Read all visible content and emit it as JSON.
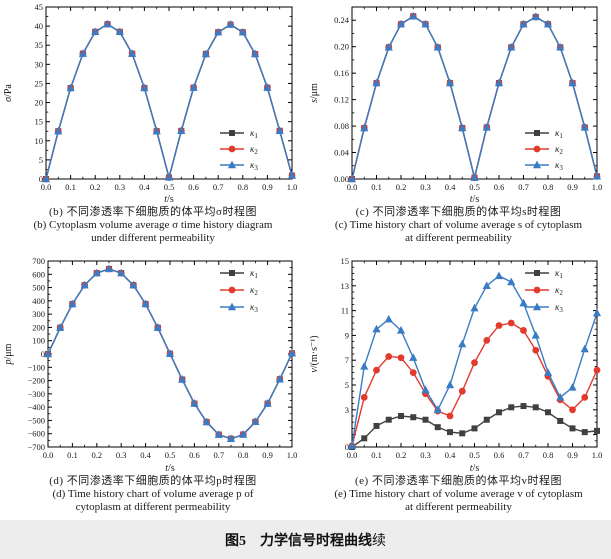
{
  "figure": {
    "label": "图5",
    "title": "力学信号时程曲线",
    "suffix": "续"
  },
  "chart_data": [
    {
      "id": "b",
      "type": "line",
      "xlabel": "t/s",
      "ylabel": "σ/Pa",
      "xlim": [
        0,
        1
      ],
      "ylim": [
        0,
        45
      ],
      "xtick_labels": [
        "0.0",
        "0.1",
        "0.2",
        "0.3",
        "0.4",
        "0.5",
        "0.6",
        "0.7",
        "0.8",
        "0.9",
        "1.0"
      ],
      "ytick_values": [
        0,
        5,
        10,
        15,
        20,
        25,
        30,
        35,
        40,
        45
      ],
      "ytick_labels": [
        "0",
        "5",
        "10",
        "15",
        "20",
        "25",
        "30",
        "35",
        "40",
        "45"
      ],
      "legend_position": "right-lower",
      "x": [
        0,
        0.05,
        0.1,
        0.15,
        0.2,
        0.25,
        0.3,
        0.35,
        0.4,
        0.45,
        0.5,
        0.55,
        0.6,
        0.65,
        0.7,
        0.75,
        0.8,
        0.85,
        0.9,
        0.95,
        1
      ],
      "series": [
        {
          "name": "κ1",
          "color": "#404040",
          "marker": "square",
          "values": [
            0,
            12.5,
            23.8,
            32.8,
            38.5,
            40.5,
            38.5,
            32.8,
            23.8,
            12.5,
            0.4,
            12.6,
            23.9,
            32.7,
            38.4,
            40.4,
            38.4,
            32.7,
            23.9,
            12.6,
            0.9
          ]
        },
        {
          "name": "κ2",
          "color": "#e23b2e",
          "marker": "circle",
          "values": [
            0,
            12.5,
            23.8,
            32.8,
            38.5,
            40.5,
            38.5,
            32.8,
            23.8,
            12.5,
            0.4,
            12.6,
            23.9,
            32.7,
            38.4,
            40.4,
            38.4,
            32.7,
            23.9,
            12.6,
            0.9
          ]
        },
        {
          "name": "κ3",
          "color": "#3a7cc4",
          "marker": "triangle",
          "values": [
            0,
            12.5,
            23.8,
            32.8,
            38.5,
            40.5,
            38.5,
            32.8,
            23.8,
            12.5,
            0.4,
            12.6,
            23.9,
            32.7,
            38.4,
            40.4,
            38.4,
            32.7,
            23.9,
            12.6,
            0.9
          ]
        }
      ],
      "caption_cn": "(b) 不同渗透率下细胞质的体平均σ时程图",
      "caption_en1": "(b) Cytoplasm volume average σ time history diagram",
      "caption_en2": "under different permeability"
    },
    {
      "id": "c",
      "type": "line",
      "xlabel": "t/s",
      "ylabel": "s/μm",
      "xlim": [
        0,
        1
      ],
      "ylim": [
        0,
        0.26
      ],
      "xtick_labels": [
        "0.0",
        "0.1",
        "0.2",
        "0.3",
        "0.4",
        "0.5",
        "0.6",
        "0.7",
        "0.8",
        "0.9",
        "1.0"
      ],
      "ytick_values": [
        0,
        0.04,
        0.08,
        0.12,
        0.16,
        0.2,
        0.24
      ],
      "ytick_labels": [
        "0.00",
        "0.04",
        "0.08",
        "0.12",
        "0.16",
        "0.20",
        "0.24"
      ],
      "legend_position": "right-lower",
      "x": [
        0,
        0.05,
        0.1,
        0.15,
        0.2,
        0.25,
        0.3,
        0.35,
        0.4,
        0.45,
        0.5,
        0.55,
        0.6,
        0.65,
        0.7,
        0.75,
        0.8,
        0.85,
        0.9,
        0.95,
        1
      ],
      "series": [
        {
          "name": "κ1",
          "color": "#404040",
          "marker": "square",
          "values": [
            0,
            0.077,
            0.145,
            0.199,
            0.234,
            0.246,
            0.234,
            0.199,
            0.145,
            0.077,
            0.002,
            0.078,
            0.145,
            0.199,
            0.234,
            0.245,
            0.234,
            0.199,
            0.145,
            0.078,
            0.004
          ]
        },
        {
          "name": "κ2",
          "color": "#e23b2e",
          "marker": "circle",
          "values": [
            0,
            0.077,
            0.145,
            0.199,
            0.234,
            0.246,
            0.234,
            0.199,
            0.145,
            0.077,
            0.002,
            0.078,
            0.145,
            0.199,
            0.234,
            0.245,
            0.234,
            0.199,
            0.145,
            0.078,
            0.004
          ]
        },
        {
          "name": "κ3",
          "color": "#3a7cc4",
          "marker": "triangle",
          "values": [
            0,
            0.077,
            0.145,
            0.199,
            0.234,
            0.246,
            0.234,
            0.199,
            0.145,
            0.077,
            0.002,
            0.078,
            0.145,
            0.199,
            0.234,
            0.245,
            0.234,
            0.199,
            0.145,
            0.078,
            0.004
          ]
        }
      ],
      "caption_cn": "(c) 不同渗透率下细胞质的体平均s时程图",
      "caption_en1": "(c) Time history chart of volume average s of cytoplasm",
      "caption_en2": "at different permeability"
    },
    {
      "id": "d",
      "type": "line",
      "xlabel": "t/s",
      "ylabel": "p/μm",
      "xlim": [
        0,
        1
      ],
      "ylim": [
        -700,
        700
      ],
      "xtick_labels": [
        "0.0",
        "0.1",
        "0.2",
        "0.3",
        "0.4",
        "0.5",
        "0.6",
        "0.7",
        "0.8",
        "0.9",
        "1.0"
      ],
      "ytick_values": [
        -700,
        -600,
        -500,
        -400,
        -300,
        -200,
        -100,
        0,
        100,
        200,
        300,
        400,
        500,
        600,
        700
      ],
      "ytick_labels": [
        "−700",
        "−600",
        "−500",
        "−400",
        "−300",
        "−200",
        "−100",
        "0",
        "100",
        "200",
        "300",
        "400",
        "500",
        "600",
        "700"
      ],
      "legend_position": "top-right",
      "x": [
        0,
        0.05,
        0.1,
        0.15,
        0.2,
        0.25,
        0.3,
        0.35,
        0.4,
        0.45,
        0.5,
        0.55,
        0.6,
        0.65,
        0.7,
        0.75,
        0.8,
        0.85,
        0.9,
        0.95,
        1
      ],
      "series": [
        {
          "name": "κ1",
          "color": "#404040",
          "marker": "square",
          "values": [
            0,
            198,
            376,
            518,
            609,
            640,
            609,
            518,
            376,
            198,
            2,
            -192,
            -373,
            -512,
            -607,
            -638,
            -606,
            -510,
            -373,
            -190,
            5
          ]
        },
        {
          "name": "κ2",
          "color": "#e23b2e",
          "marker": "circle",
          "values": [
            0,
            198,
            376,
            518,
            609,
            640,
            609,
            518,
            376,
            198,
            2,
            -192,
            -373,
            -512,
            -607,
            -638,
            -606,
            -510,
            -373,
            -190,
            5
          ]
        },
        {
          "name": "κ3",
          "color": "#3a7cc4",
          "marker": "triangle",
          "values": [
            0,
            198,
            376,
            518,
            609,
            640,
            609,
            518,
            376,
            198,
            2,
            -192,
            -373,
            -512,
            -607,
            -638,
            -606,
            -510,
            -373,
            -190,
            5
          ]
        }
      ],
      "caption_cn": "(d) 不同渗透率下细胞质的体平均p时程图",
      "caption_en1": "(d) Time history chart of volume average p of",
      "caption_en2": "cytoplasm at different permeability"
    },
    {
      "id": "e",
      "type": "line",
      "xlabel": "t/s",
      "ylabel": "v/(m·s⁻¹)",
      "xlim": [
        0,
        1
      ],
      "ylim": [
        0,
        15
      ],
      "xtick_labels": [
        "0.0",
        "0.1",
        "0.2",
        "0.3",
        "0.4",
        "0.5",
        "0.6",
        "0.7",
        "0.8",
        "0.9",
        "1.0"
      ],
      "ytick_values": [
        0,
        1,
        3,
        5,
        7,
        9,
        11,
        13,
        15
      ],
      "ytick_labels": [
        "0",
        "",
        "3",
        "5",
        "7",
        "9",
        "11",
        "13",
        "15"
      ],
      "legend_position": "top-right",
      "x": [
        0,
        0.05,
        0.1,
        0.15,
        0.2,
        0.25,
        0.3,
        0.35,
        0.4,
        0.45,
        0.5,
        0.55,
        0.6,
        0.65,
        0.7,
        0.75,
        0.8,
        0.85,
        0.9,
        0.95,
        1
      ],
      "series": [
        {
          "name": "κ1",
          "color": "#404040",
          "marker": "square",
          "values": [
            0,
            0.7,
            1.7,
            2.2,
            2.5,
            2.4,
            2.2,
            1.6,
            1.2,
            1.1,
            1.5,
            2.2,
            2.8,
            3.2,
            3.3,
            3.2,
            2.8,
            2.1,
            1.5,
            1.2,
            1.3
          ]
        },
        {
          "name": "κ2",
          "color": "#e23b2e",
          "marker": "circle",
          "values": [
            0.1,
            4.0,
            6.2,
            7.3,
            7.2,
            6.0,
            4.3,
            2.9,
            2.5,
            4.5,
            6.8,
            8.6,
            9.8,
            10.0,
            9.4,
            7.8,
            5.7,
            3.8,
            3.0,
            4.0,
            6.2
          ]
        },
        {
          "name": "κ3",
          "color": "#3a7cc4",
          "marker": "triangle",
          "values": [
            0.1,
            6.5,
            9.5,
            10.3,
            9.4,
            7.2,
            4.6,
            3.0,
            5.0,
            8.3,
            11.2,
            13.0,
            13.8,
            13.3,
            11.6,
            9.0,
            6.0,
            4.0,
            4.8,
            7.9,
            10.8
          ]
        }
      ],
      "caption_cn": "(e) 不同渗透率下细胞质的体平均v时程图",
      "caption_en1": "(e) Time history chart of volume average v of cytoplasm",
      "caption_en2": "at different permeability"
    }
  ]
}
